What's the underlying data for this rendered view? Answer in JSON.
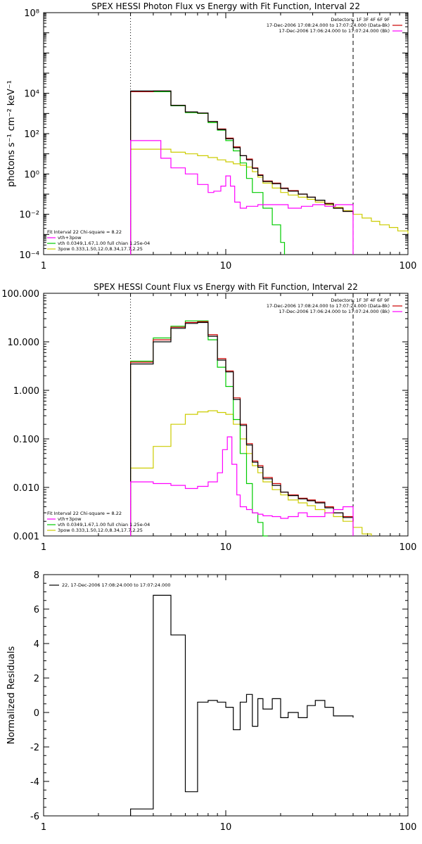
{
  "chart_data": [
    {
      "type": "line",
      "title": "SPEX HESSI Photon Flux vs Energy with Fit Function, Interval 22",
      "ylabel": "photons s⁻¹ cm⁻² keV⁻¹",
      "xlabel": "",
      "xscale": "log",
      "yscale": "log",
      "xlim": [
        1,
        100
      ],
      "ylim": [
        0.0001,
        100000000
      ],
      "x_ticks": [
        1,
        10,
        100
      ],
      "x_tick_labels": [
        "1",
        "10",
        "100"
      ],
      "y_ticks": [
        0.0001,
        0.01,
        1,
        100,
        10000,
        100000000
      ],
      "y_tick_labels": [
        "10⁻⁴",
        "10⁻²",
        "10⁰",
        "10²",
        "10⁴",
        "10⁸"
      ],
      "vlines": [
        {
          "x": 3,
          "style": "dotted"
        },
        {
          "x": 50,
          "style": "dashed"
        }
      ],
      "legend_topright": [
        "Detectors: 1F 3F 4F 6F 9F",
        "17-Dec-2006 17:08:24.000 to 17:07:24.000 (Data-Bk)",
        "17-Dec-2006 17:06:24.000 to 17:07:24.000 (Bk)"
      ],
      "legend_topright_colors": [
        "#000000",
        "#cc0000",
        "#ff00ff"
      ],
      "legend_bottomleft": [
        "Fit Interval 22   Chi-square = 8.22",
        "vth+3pow",
        "vth 0.0349,1.67,1.00  full chian 1.25e-04",
        "3pow 0.333,1.50,12.0,8.34,17.7,2.25"
      ],
      "legend_bottomleft_colors": [
        "",
        "#ff00ff",
        "#00cc00",
        "#cccc00"
      ],
      "series": [
        {
          "name": "Data-Bk",
          "color": "#cc0000",
          "x": [
            3.0,
            4.0,
            5.0,
            6.0,
            7.0,
            8.0,
            9.0,
            10.0,
            11.0,
            12.0,
            13.0,
            14.0,
            15.0,
            16.0,
            18.0,
            20.0,
            22.0,
            25.0,
            28.0,
            31.0,
            35.0,
            39.0,
            44.0,
            50.0
          ],
          "values": [
            12000,
            13000,
            2500,
            1200,
            1050,
            400,
            170,
            60,
            22,
            8,
            5.5,
            2,
            0.9,
            0.45,
            0.35,
            0.2,
            0.15,
            0.1,
            0.07,
            0.05,
            0.035,
            0.02,
            0.014,
            0.01
          ]
        },
        {
          "name": "Bk",
          "color": "#ff00ff",
          "x": [
            3.0,
            3.8,
            4.4,
            5.0,
            6.0,
            7.0,
            8.0,
            8.6,
            9.4,
            10.0,
            10.6,
            11.2,
            12.0,
            13.0,
            15.0,
            18.0,
            22.0,
            26.0,
            30.0,
            35.0,
            40.0,
            44.0,
            50.0
          ],
          "values": [
            45,
            45,
            6,
            2,
            1,
            0.3,
            0.12,
            0.14,
            0.25,
            0.8,
            0.25,
            0.04,
            0.02,
            0.025,
            0.03,
            0.03,
            0.02,
            0.025,
            0.03,
            0.025,
            0.03,
            0.03,
            0.0001
          ]
        },
        {
          "name": "vth+3pow",
          "color": "#000000",
          "x": [
            3.0,
            4.0,
            5.0,
            6.0,
            7.0,
            8.0,
            9.0,
            10.0,
            11.0,
            12.0,
            13.0,
            14.0,
            15.0,
            16.0,
            18.0,
            20.0,
            22.0,
            25.0,
            28.0,
            31.0,
            35.0,
            39.0,
            44.0,
            50.0
          ],
          "values": [
            13000,
            13000,
            2500,
            1200,
            1050,
            400,
            160,
            55,
            20,
            8,
            5,
            1.9,
            0.85,
            0.42,
            0.33,
            0.19,
            0.14,
            0.1,
            0.07,
            0.05,
            0.033,
            0.02,
            0.014,
            0.01
          ]
        },
        {
          "name": "vth",
          "color": "#00cc00",
          "x": [
            3.0,
            4.0,
            5.0,
            6.0,
            7.0,
            8.0,
            9.0,
            10.0,
            11.0,
            12.0,
            13.0,
            14.0,
            16.0,
            18.0,
            20.0,
            21.0
          ],
          "values": [
            12000,
            12000,
            2400,
            1100,
            1000,
            350,
            150,
            45,
            14,
            3.5,
            0.6,
            0.12,
            0.02,
            0.003,
            0.0004,
            0.0001
          ]
        },
        {
          "name": "3pow",
          "color": "#cccc00",
          "x": [
            3.0,
            4.0,
            5.0,
            6.0,
            7.0,
            8.0,
            9.0,
            10.0,
            11.0,
            12.0,
            13.0,
            14.0,
            15.0,
            16.0,
            18.0,
            20.0,
            22.0,
            25.0,
            28.0,
            31.0,
            35.0,
            39.0,
            44.0,
            50.0,
            56.0,
            63.0,
            70.0,
            79.0,
            88.0,
            100.0
          ],
          "values": [
            17,
            17,
            12,
            10,
            8,
            6.5,
            5,
            4,
            3.2,
            2.7,
            2.2,
            1.3,
            0.7,
            0.35,
            0.2,
            0.12,
            0.09,
            0.07,
            0.055,
            0.04,
            0.03,
            0.022,
            0.015,
            0.01,
            0.0065,
            0.0045,
            0.003,
            0.0022,
            0.0015,
            0.0011
          ]
        }
      ]
    },
    {
      "type": "line",
      "title": "SPEX HESSI Count Flux vs Energy with Fit Function, Interval 22",
      "xlabel": "",
      "ylabel": "",
      "xscale": "log",
      "yscale": "log",
      "xlim": [
        1,
        100
      ],
      "ylim": [
        0.001,
        100
      ],
      "x_ticks": [
        1,
        10,
        100
      ],
      "x_tick_labels": [
        "1",
        "10",
        "100"
      ],
      "y_ticks": [
        0.001,
        0.01,
        0.1,
        1,
        10,
        100
      ],
      "y_tick_labels": [
        "0.001",
        "0.010",
        "0.100",
        "1.000",
        "10.000",
        "100.000"
      ],
      "vlines": [
        {
          "x": 3,
          "style": "dotted"
        },
        {
          "x": 50,
          "style": "dashed"
        }
      ],
      "legend_topright": [
        "Detectors: 1F 3F 4F 6F 9F",
        "17-Dec-2006 17:08:24.000 to 17:07:24.000 (Data-Bk)",
        "17-Dec-2006 17:06:24.000 to 17:07:24.000 (Bk)"
      ],
      "legend_topright_colors": [
        "#000000",
        "#cc0000",
        "#ff00ff"
      ],
      "legend_bottomleft": [
        "Fit Interval 22   Chi-square = 8.22",
        "vth+3pow",
        "vth 0.0349,1.67,1.00  full chian 1.25e-04",
        "3pow 0.333,1.50,12.0,8.34,17.7,2.25"
      ],
      "legend_bottomleft_colors": [
        "",
        "#ff00ff",
        "#00cc00",
        "#cccc00"
      ],
      "series": [
        {
          "name": "Data-Bk",
          "color": "#cc0000",
          "x": [
            3.0,
            4.0,
            5.0,
            6.0,
            7.0,
            8.0,
            9.0,
            10.0,
            11.0,
            12.0,
            13.0,
            14.0,
            15.0,
            16.0,
            18.0,
            20.0,
            22.0,
            25.0,
            28.0,
            31.0,
            35.0,
            39.0,
            44.0,
            50.0
          ],
          "values": [
            3.8,
            11,
            20,
            25,
            26,
            14,
            4.5,
            2.5,
            0.7,
            0.2,
            0.08,
            0.035,
            0.028,
            0.016,
            0.012,
            0.008,
            0.007,
            0.006,
            0.0055,
            0.005,
            0.004,
            0.003,
            0.0025,
            0.002
          ]
        },
        {
          "name": "Bk",
          "color": "#ff00ff",
          "x": [
            3.0,
            4.0,
            5.0,
            6.0,
            7.0,
            8.0,
            9.0,
            9.6,
            10.2,
            10.8,
            11.5,
            12.0,
            13.0,
            14.0,
            15.0,
            16.0,
            18.0,
            20.0,
            22.0,
            25.0,
            28.0,
            31.0,
            35.0,
            39.0,
            44.0,
            50.0
          ],
          "values": [
            0.013,
            0.012,
            0.011,
            0.0095,
            0.0105,
            0.013,
            0.02,
            0.06,
            0.11,
            0.03,
            0.007,
            0.004,
            0.0035,
            0.003,
            0.0028,
            0.0026,
            0.0025,
            0.0023,
            0.0025,
            0.003,
            0.0025,
            0.0025,
            0.003,
            0.0035,
            0.004,
            0.001
          ]
        },
        {
          "name": "vth+3pow",
          "color": "#000000",
          "x": [
            3.0,
            4.0,
            5.0,
            6.0,
            7.0,
            8.0,
            9.0,
            10.0,
            11.0,
            12.0,
            13.0,
            14.0,
            15.0,
            16.0,
            18.0,
            20.0,
            22.0,
            25.0,
            28.0,
            31.0,
            35.0,
            39.0,
            44.0,
            50.0
          ],
          "values": [
            3.5,
            10,
            19,
            24,
            25,
            13,
            4.2,
            2.4,
            0.65,
            0.19,
            0.075,
            0.033,
            0.026,
            0.015,
            0.011,
            0.008,
            0.0068,
            0.0058,
            0.0053,
            0.0048,
            0.0038,
            0.003,
            0.0024,
            0.002
          ]
        },
        {
          "name": "vth",
          "color": "#00cc00",
          "x": [
            3.0,
            4.0,
            5.0,
            6.0,
            7.0,
            8.0,
            9.0,
            10.0,
            11.0,
            12.0,
            13.0,
            14.0,
            15.0,
            16.0,
            17.0
          ],
          "values": [
            4,
            12,
            21,
            27,
            27,
            11,
            3,
            1.2,
            0.25,
            0.05,
            0.012,
            0.003,
            0.0019,
            0.001,
            0.0005
          ]
        },
        {
          "name": "3pow",
          "color": "#cccc00",
          "x": [
            3.0,
            4.0,
            5.0,
            6.0,
            7.0,
            8.0,
            9.0,
            10.0,
            11.0,
            12.0,
            13.0,
            14.0,
            15.0,
            16.0,
            18.0,
            20.0,
            22.0,
            25.0,
            28.0,
            31.0,
            35.0,
            39.0,
            44.0,
            50.0,
            56.0,
            63.0
          ],
          "values": [
            0.025,
            0.07,
            0.2,
            0.32,
            0.36,
            0.38,
            0.35,
            0.32,
            0.2,
            0.1,
            0.05,
            0.028,
            0.02,
            0.013,
            0.009,
            0.007,
            0.0055,
            0.0048,
            0.0042,
            0.0035,
            0.003,
            0.0025,
            0.002,
            0.0015,
            0.0011,
            0.0009
          ]
        }
      ]
    },
    {
      "type": "line",
      "title": "",
      "ylabel": "Normalized Residuals",
      "xlabel": "",
      "xscale": "log",
      "yscale": "linear",
      "xlim": [
        1,
        100
      ],
      "ylim": [
        -6,
        8
      ],
      "x_ticks": [
        1,
        10,
        100
      ],
      "x_tick_labels": [
        "1",
        "10",
        "100"
      ],
      "y_ticks": [
        -6,
        -4,
        -2,
        0,
        2,
        4,
        6,
        8
      ],
      "y_tick_labels": [
        "-6",
        "-4",
        "-2",
        "0",
        "2",
        "4",
        "6",
        "8"
      ],
      "legend_topleft": [
        "22, 17-Dec-2006 17:08:24.000 to 17:07:24.000"
      ],
      "legend_topleft_colors": [
        "#000000"
      ],
      "series": [
        {
          "name": "22, 17-Dec-2006 17:08:24.000 to 17:07:24.000",
          "color": "#000000",
          "x": [
            3.0,
            4.0,
            5.0,
            6.0,
            7.0,
            8.0,
            9.0,
            10.0,
            11.0,
            12.0,
            13.0,
            14.0,
            15.0,
            16.0,
            18.0,
            20.0,
            22.0,
            25.0,
            28.0,
            31.0,
            35.0,
            39.0,
            44.0,
            50.0
          ],
          "values": [
            -5.6,
            6.8,
            4.5,
            -4.6,
            0.6,
            0.7,
            0.6,
            0.3,
            -1.0,
            0.6,
            1.05,
            -0.8,
            0.8,
            0.2,
            0.8,
            -0.3,
            0.0,
            -0.3,
            0.4,
            0.7,
            0.3,
            -0.2,
            -0.2,
            -0.3
          ]
        }
      ]
    }
  ]
}
